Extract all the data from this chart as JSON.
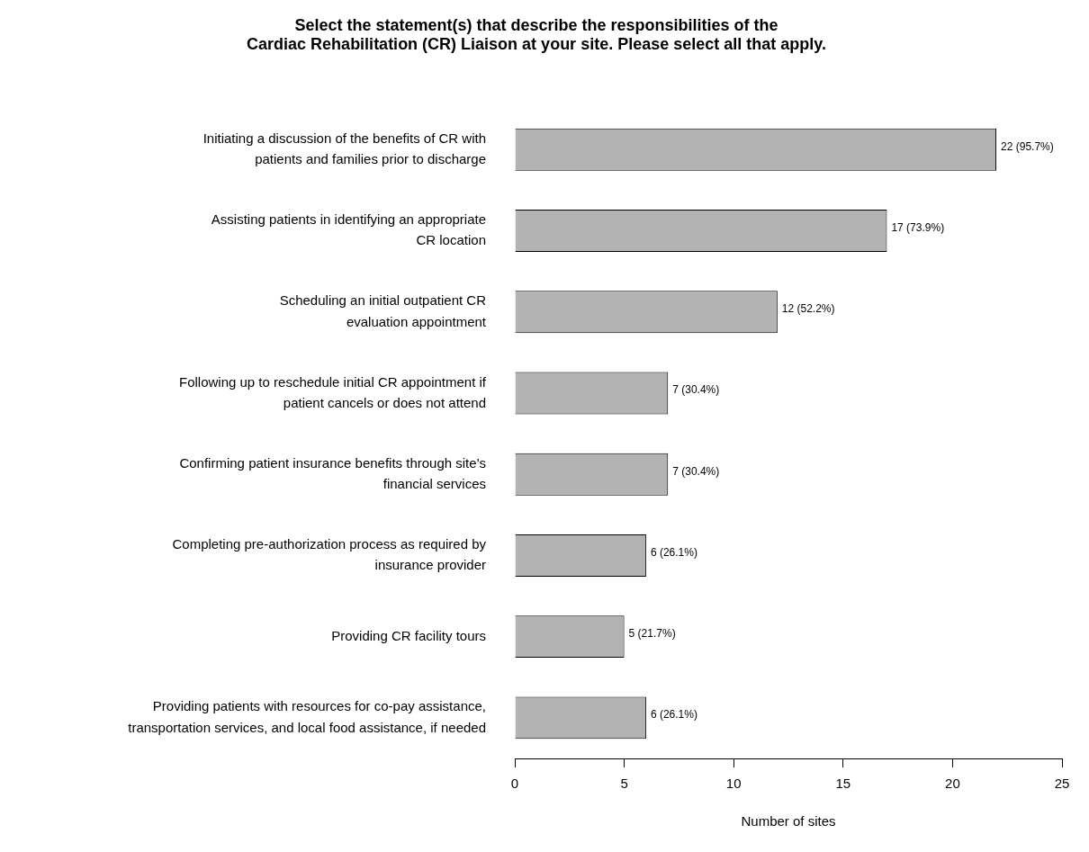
{
  "chart_data": {
    "type": "bar",
    "orientation": "horizontal",
    "title": "Select the statement(s) that describe the responsibilities of the\nCardiac Rehabilitation (CR) Liaison at your site. Please select all that apply.",
    "categories": [
      "Initiating a discussion of the benefits of CR with\npatients and families prior to discharge",
      "Assisting patients in identifying an appropriate\nCR location",
      "Scheduling an initial outpatient CR\nevaluation appointment",
      "Following up to reschedule initial CR appointment if\npatient cancels or does not attend",
      "Confirming patient insurance benefits through site's\nfinancial services",
      "Completing pre-authorization process as required by\ninsurance provider",
      "Providing CR facility tours",
      "Providing patients with resources for co-pay assistance,\ntransportation services, and local food assistance, if needed"
    ],
    "values": [
      22,
      17,
      12,
      7,
      7,
      6,
      5,
      6
    ],
    "value_labels": [
      "22 (95.7%)",
      "17 (73.9%)",
      "12 (52.2%)",
      "7 (30.4%)",
      "7 (30.4%)",
      "6 (26.1%)",
      "5 (21.7%)",
      "6 (26.1%)"
    ],
    "color": "#b3b3b3",
    "xlabel": "Number of sites",
    "xlim": [
      0,
      25
    ],
    "xticks": [
      0,
      5,
      10,
      15,
      20,
      25
    ],
    "grid": false,
    "legend": false
  }
}
